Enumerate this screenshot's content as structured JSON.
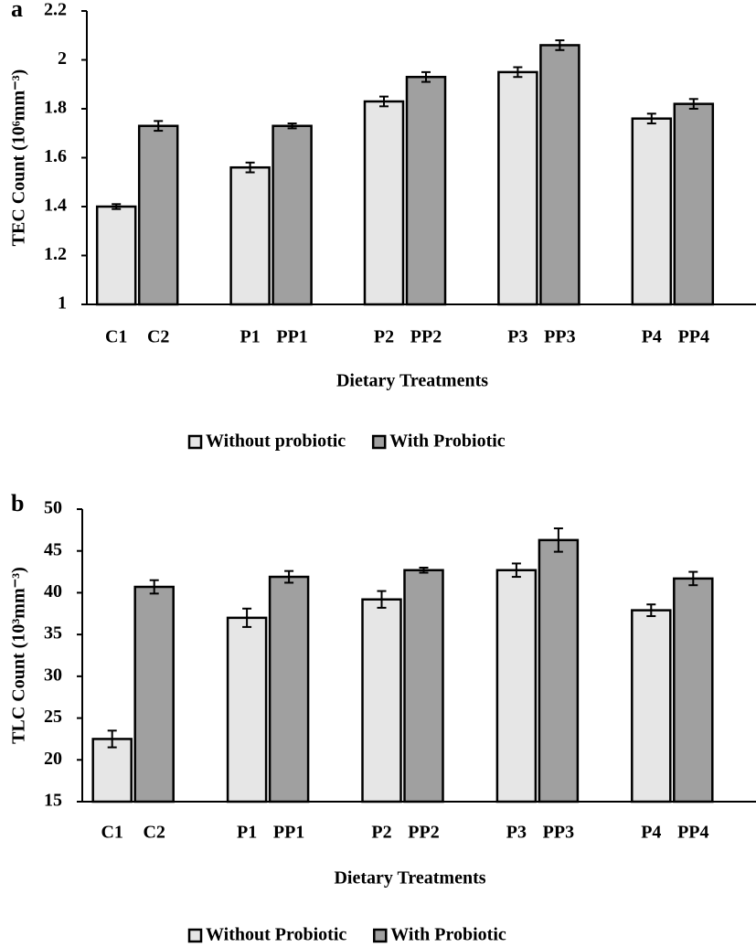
{
  "chart_data": [
    {
      "type": "bar",
      "label": "a",
      "ylabel": "TEC Count (10⁶mm⁻³)",
      "xlabel": "Dietary Treatments",
      "ylim": [
        1,
        2.2
      ],
      "yticks": [
        1,
        1.2,
        1.4,
        1.6,
        1.8,
        2,
        2.2
      ],
      "series": [
        {
          "name": "Without probiotic",
          "color": "#e6e6e6",
          "labels": [
            "C1",
            "P1",
            "P2",
            "P3",
            "P4"
          ],
          "values": [
            1.4,
            1.56,
            1.83,
            1.95,
            1.76
          ],
          "errors": [
            0.01,
            0.02,
            0.02,
            0.02,
            0.02
          ]
        },
        {
          "name": "With Probiotic",
          "color": "#a0a0a0",
          "labels": [
            "C2",
            "PP1",
            "PP2",
            "PP3",
            "PP4"
          ],
          "values": [
            1.73,
            1.73,
            1.93,
            2.06,
            1.82
          ],
          "errors": [
            0.02,
            0.01,
            0.02,
            0.02,
            0.02
          ]
        }
      ]
    },
    {
      "type": "bar",
      "label": "b",
      "ylabel": "TLC Count (10³mm⁻³)",
      "xlabel": "Dietary Treatments",
      "ylim": [
        15,
        50
      ],
      "yticks": [
        15,
        20,
        25,
        30,
        35,
        40,
        45,
        50
      ],
      "series": [
        {
          "name": "Without Probiotic",
          "color": "#e6e6e6",
          "labels": [
            "C1",
            "P1",
            "P2",
            "P3",
            "P4"
          ],
          "values": [
            22.5,
            37.0,
            39.2,
            42.7,
            37.9
          ],
          "errors": [
            1.0,
            1.1,
            1.0,
            0.8,
            0.7
          ]
        },
        {
          "name": "With Probiotic",
          "color": "#a0a0a0",
          "labels": [
            "C2",
            "PP1",
            "PP2",
            "PP3",
            "PP4"
          ],
          "values": [
            40.7,
            41.9,
            42.7,
            46.3,
            41.7
          ],
          "errors": [
            0.8,
            0.7,
            0.3,
            1.4,
            0.8
          ]
        }
      ]
    }
  ]
}
